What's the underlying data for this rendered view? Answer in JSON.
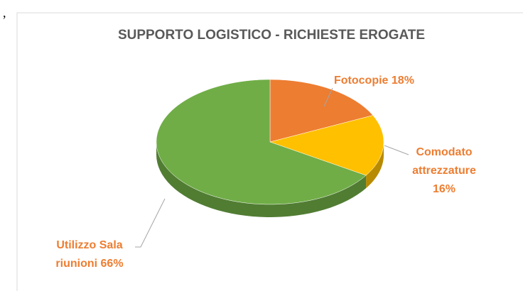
{
  "corner_mark": ",",
  "chart_data": {
    "type": "pie",
    "title": "SUPPORTO LOGISTICO - RICHIESTE EROGATE",
    "categories": [
      "Fotocopie",
      "Comodato attrezzature",
      "Utilizzo Sala riunioni"
    ],
    "values": [
      18,
      16,
      66
    ],
    "value_labels": [
      "18%",
      "16%",
      "66%"
    ],
    "colors": [
      "#ed7d31",
      "#ffc000",
      "#70ad47"
    ]
  }
}
